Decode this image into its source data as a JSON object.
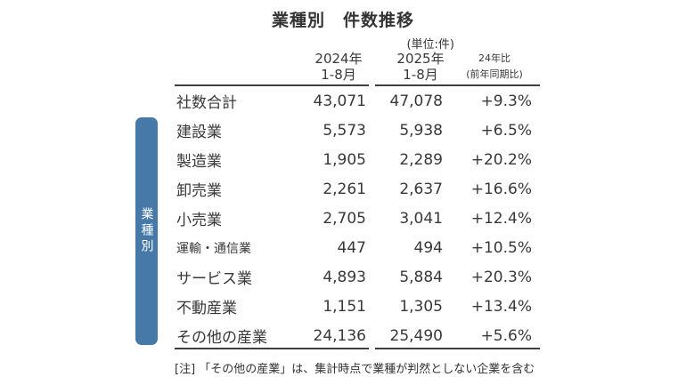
{
  "title": "業種別　件数推移",
  "unit_note": "(単位:件)",
  "sidebar": {
    "label": "業種別"
  },
  "table": {
    "columns": [
      {
        "line1": "2024年",
        "line2": "1-8月"
      },
      {
        "line1": "2025年",
        "line2": "1-8月"
      },
      {
        "line1": "24年比",
        "line2": "(前年同期比)"
      }
    ],
    "rows": [
      {
        "label": "社数合計",
        "y2024": "43,071",
        "y2025": "47,078",
        "yoy": "+9.3%"
      },
      {
        "label": "建設業",
        "y2024": "5,573",
        "y2025": "5,938",
        "yoy": "+6.5%"
      },
      {
        "label": "製造業",
        "y2024": "1,905",
        "y2025": "2,289",
        "yoy": "+20.2%"
      },
      {
        "label": "卸売業",
        "y2024": "2,261",
        "y2025": "2,637",
        "yoy": "+16.6%"
      },
      {
        "label": "小売業",
        "y2024": "2,705",
        "y2025": "3,041",
        "yoy": "+12.4%"
      },
      {
        "label": "運輸・通信業",
        "y2024": "447",
        "y2025": "494",
        "yoy": "+10.5%"
      },
      {
        "label": "サービス業",
        "y2024": "4,893",
        "y2025": "5,884",
        "yoy": "+20.3%"
      },
      {
        "label": "不動産業",
        "y2024": "1,151",
        "y2025": "1,305",
        "yoy": "+13.4%"
      },
      {
        "label": "その他の産業",
        "y2024": "24,136",
        "y2025": "25,490",
        "yoy": "+5.6%"
      }
    ]
  },
  "footnote": "[注] 「その他の産業」は、集計時点で業種が判然としない企業を含む",
  "colors": {
    "sidebar_bar": "#4679a8",
    "text": "#383838",
    "rule_line": "#3f3f3f",
    "background": "#ffffff"
  },
  "chart_data": {
    "type": "table",
    "title": "業種別　件数推移",
    "unit": "件",
    "columns": [
      "業種",
      "2024年 1-8月",
      "2025年 1-8月",
      "24年比(前年同期比)"
    ],
    "rows": [
      {
        "label": "社数合計",
        "y2024": 43071,
        "y2025": 47078,
        "yoy_pct": 9.3
      },
      {
        "label": "建設業",
        "y2024": 5573,
        "y2025": 5938,
        "yoy_pct": 6.5
      },
      {
        "label": "製造業",
        "y2024": 1905,
        "y2025": 2289,
        "yoy_pct": 20.2
      },
      {
        "label": "卸売業",
        "y2024": 2261,
        "y2025": 2637,
        "yoy_pct": 16.6
      },
      {
        "label": "小売業",
        "y2024": 2705,
        "y2025": 3041,
        "yoy_pct": 12.4
      },
      {
        "label": "運輸・通信業",
        "y2024": 447,
        "y2025": 494,
        "yoy_pct": 10.5
      },
      {
        "label": "サービス業",
        "y2024": 4893,
        "y2025": 5884,
        "yoy_pct": 20.3
      },
      {
        "label": "不動産業",
        "y2024": 1151,
        "y2025": 1305,
        "yoy_pct": 13.4
      },
      {
        "label": "その他の産業",
        "y2024": 24136,
        "y2025": 25490,
        "yoy_pct": 5.6
      }
    ],
    "footnote": "[注] 「その他の産業」は、集計時点で業種が判然としない企業を含む"
  }
}
